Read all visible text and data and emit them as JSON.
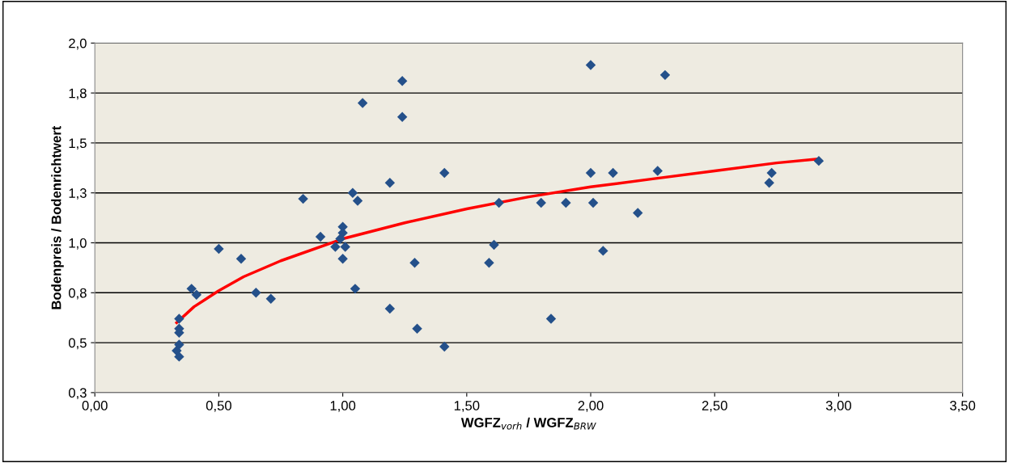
{
  "chart_data": {
    "type": "scatter",
    "xlabel": "WGFZ$_{vorh}$ / WGFZ$_{BRW}$",
    "ylabel": "Bodenpreis / Bodenrichtwert",
    "xlim": [
      0,
      3.5
    ],
    "xticks": [
      {
        "value": 0,
        "label": "0,00"
      },
      {
        "value": 0.5,
        "label": "0,50"
      },
      {
        "value": 1.0,
        "label": "1,00"
      },
      {
        "value": 1.5,
        "label": "1,50"
      },
      {
        "value": 2.0,
        "label": "2,00"
      },
      {
        "value": 2.5,
        "label": "2,50"
      },
      {
        "value": 3.0,
        "label": "3,00"
      },
      {
        "value": 3.5,
        "label": "3,50"
      }
    ],
    "ylim": [
      0.25,
      2.0
    ],
    "yticks": [
      {
        "value": 0.25,
        "label": "0,3"
      },
      {
        "value": 0.5,
        "label": "0,5"
      },
      {
        "value": 0.75,
        "label": "0,8"
      },
      {
        "value": 1.0,
        "label": "1,0"
      },
      {
        "value": 1.25,
        "label": "1,3"
      },
      {
        "value": 1.5,
        "label": "1,5"
      },
      {
        "value": 1.75,
        "label": "1,8"
      },
      {
        "value": 2.0,
        "label": "2,0"
      }
    ],
    "grid": "y",
    "legend": false,
    "series": [
      {
        "marker": "diamond",
        "color": "#24508a",
        "x": [
          2.92,
          2.73,
          2.72,
          2.27,
          2.0,
          2.09,
          2.01,
          2.19,
          2.05,
          1.9,
          1.8,
          1.63,
          1.61,
          1.59,
          1.84,
          2.0,
          2.3,
          1.24,
          1.24,
          1.08,
          1.41,
          1.19,
          1.04,
          1.06,
          0.84,
          1.29,
          1.3,
          1.41,
          1.19,
          1.05,
          1.0,
          1.0,
          0.99,
          0.91,
          0.97,
          1.01,
          1.0,
          0.59,
          0.5,
          0.65,
          0.71,
          0.39,
          0.41,
          0.34,
          0.34,
          0.34,
          0.34,
          0.33,
          0.34
        ],
        "values": [
          1.41,
          1.35,
          1.3,
          1.36,
          1.35,
          1.35,
          1.2,
          1.15,
          0.96,
          1.2,
          1.2,
          1.2,
          0.99,
          0.9,
          0.62,
          1.89,
          1.84,
          1.81,
          1.63,
          1.7,
          1.35,
          1.3,
          1.25,
          1.21,
          1.22,
          0.9,
          0.57,
          0.48,
          0.67,
          0.77,
          1.08,
          1.05,
          1.02,
          1.03,
          0.98,
          0.98,
          0.92,
          0.92,
          0.97,
          0.75,
          0.72,
          0.77,
          0.74,
          0.62,
          0.57,
          0.55,
          0.49,
          0.46,
          0.43
        ]
      },
      {
        "type": "line",
        "marker": "none",
        "line_style": "solid",
        "color": "#ff0000",
        "x": [
          0.33,
          0.4,
          0.5,
          0.6,
          0.75,
          1.0,
          1.25,
          1.5,
          1.75,
          2.0,
          2.25,
          2.5,
          2.75,
          2.92
        ],
        "values": [
          0.6,
          0.68,
          0.76,
          0.83,
          0.91,
          1.02,
          1.1,
          1.17,
          1.23,
          1.28,
          1.32,
          1.36,
          1.4,
          1.42
        ]
      }
    ]
  }
}
